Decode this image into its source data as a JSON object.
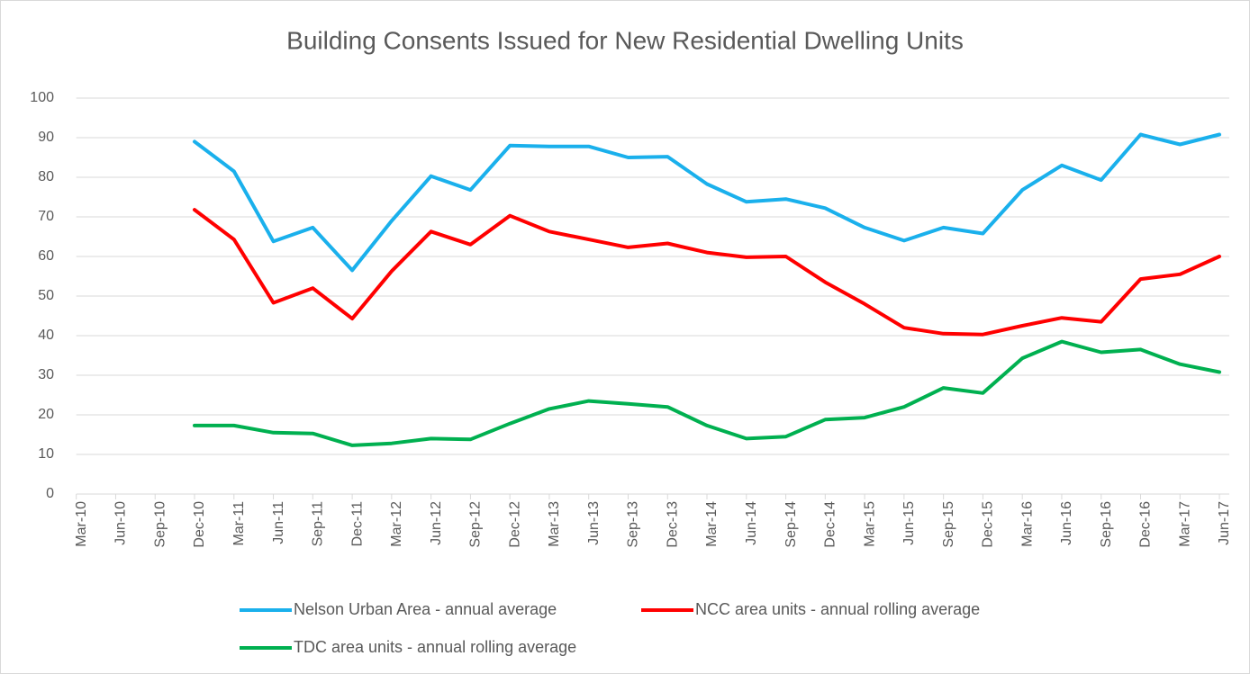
{
  "chart_data": {
    "type": "line",
    "title": "Building Consents Issued for New Residential Dwelling Units",
    "categories": [
      "Mar-10",
      "Jun-10",
      "Sep-10",
      "Dec-10",
      "Mar-11",
      "Jun-11",
      "Sep-11",
      "Dec-11",
      "Mar-12",
      "Jun-12",
      "Sep-12",
      "Dec-12",
      "Mar-13",
      "Jun-13",
      "Sep-13",
      "Dec-13",
      "Mar-14",
      "Jun-14",
      "Sep-14",
      "Dec-14",
      "Mar-15",
      "Jun-15",
      "Sep-15",
      "Dec-15",
      "Mar-16",
      "Jun-16",
      "Sep-16",
      "Dec-16",
      "Mar-17",
      "Jun-17"
    ],
    "series": [
      {
        "name": "Nelson Urban Area - annual average",
        "color": "#1ab0ec",
        "values": [
          null,
          null,
          null,
          89,
          81.5,
          63.8,
          67.3,
          56.5,
          69,
          80.3,
          76.8,
          88,
          87.8,
          87.8,
          85,
          85.2,
          78.3,
          73.8,
          74.5,
          72.2,
          67.3,
          64,
          67.3,
          65.8,
          76.8,
          83,
          79.3,
          90.8,
          88.3,
          90.8
        ]
      },
      {
        "name": "NCC area units - annual rolling average",
        "color": "#ff0000",
        "values": [
          null,
          null,
          null,
          71.8,
          64.3,
          48.3,
          52,
          44.3,
          56.3,
          66.3,
          63,
          70.3,
          66.3,
          64.3,
          62.3,
          63.3,
          61,
          59.8,
          60,
          53.5,
          48,
          42,
          40.5,
          40.3,
          42.5,
          44.5,
          43.5,
          54.3,
          55.5,
          60
        ]
      },
      {
        "name": "TDC area units - annual rolling average",
        "color": "#00b050",
        "values": [
          null,
          null,
          null,
          17.3,
          17.3,
          15.5,
          15.3,
          12.3,
          12.8,
          14,
          13.8,
          17.8,
          21.5,
          23.5,
          22.8,
          22,
          17.3,
          14,
          14.5,
          18.8,
          19.3,
          22,
          26.8,
          25.5,
          34.3,
          38.5,
          35.8,
          36.5,
          32.8,
          30.8
        ]
      }
    ],
    "ylim": [
      0,
      100
    ],
    "yticks": [
      0,
      10,
      20,
      30,
      40,
      50,
      60,
      70,
      80,
      90,
      100
    ],
    "grid": true
  }
}
